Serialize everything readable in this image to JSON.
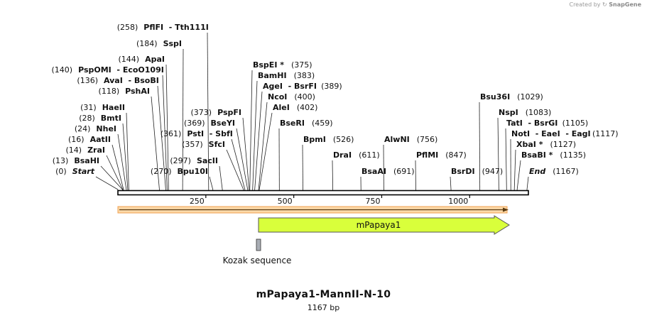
{
  "credit": {
    "prefix": "Created by",
    "brand": "SnapGene"
  },
  "map": {
    "name": "mPapaya1-MannII-N-10",
    "length_label": "1167 bp",
    "ticks": [
      "250",
      "500",
      "750",
      "1000"
    ],
    "features": [
      {
        "name": "mPapaya1",
        "type": "cds-arrow",
        "color": "#d9ff3b"
      },
      {
        "name": "Kozak sequence",
        "type": "box",
        "color": "#a9aeb5"
      }
    ],
    "sites": [
      {
        "position": "(258)",
        "name": "PflFI  - Tth111I"
      },
      {
        "position": "(184)",
        "name": "SspI"
      },
      {
        "position": "(144)",
        "name": "ApaI"
      },
      {
        "position": "(140)",
        "name": "PspOMI  - EcoO109I"
      },
      {
        "position": "(136)",
        "name": "AvaI  - BsoBI"
      },
      {
        "position": "(118)",
        "name": "PshAI"
      },
      {
        "position": "(31)",
        "name": "HaeII"
      },
      {
        "position": "(28)",
        "name": "BmtI"
      },
      {
        "position": "(24)",
        "name": "NheI"
      },
      {
        "position": "(16)",
        "name": "AatII"
      },
      {
        "position": "(14)",
        "name": "ZraI"
      },
      {
        "position": "(13)",
        "name": "BsaHI"
      },
      {
        "position": "(0)",
        "name": "Start"
      },
      {
        "position": "(373)",
        "name": "PspFI"
      },
      {
        "position": "(369)",
        "name": "BseYI"
      },
      {
        "position": "(361)",
        "name": "PstI  - SbfI"
      },
      {
        "position": "(357)",
        "name": "SfcI"
      },
      {
        "position": "(297)",
        "name": "SacII"
      },
      {
        "position": "(270)",
        "name": "Bpu10I"
      },
      {
        "name": "BspEI *",
        "position": "(375)"
      },
      {
        "name": "BamHI",
        "position": "(383)"
      },
      {
        "name": "AgeI  - BsrFI",
        "position": "(389)"
      },
      {
        "name": "NcoI",
        "position": "(400)"
      },
      {
        "name": "AleI",
        "position": "(402)"
      },
      {
        "name": "BseRI",
        "position": "(459)"
      },
      {
        "name": "BpmI",
        "position": "(526)"
      },
      {
        "name": "DraI",
        "position": "(611)"
      },
      {
        "name": "AlwNI",
        "position": "(756)"
      },
      {
        "name": "BsaAI",
        "position": "(691)"
      },
      {
        "name": "PflMI",
        "position": "(847)"
      },
      {
        "name": "BsrDI",
        "position": "(947)"
      },
      {
        "name": "Bsu36I",
        "position": "(1029)"
      },
      {
        "name": "NspI",
        "position": "(1083)"
      },
      {
        "name": "TatI  - BsrGI",
        "position": "(1105)"
      },
      {
        "name": "NotI  - EaeI  - EagI",
        "position": "(1117)"
      },
      {
        "name": "XbaI *",
        "position": "(1127)"
      },
      {
        "name": "BsaBI *",
        "position": "(1135)"
      },
      {
        "name": "End",
        "position": "(1167)"
      }
    ]
  }
}
